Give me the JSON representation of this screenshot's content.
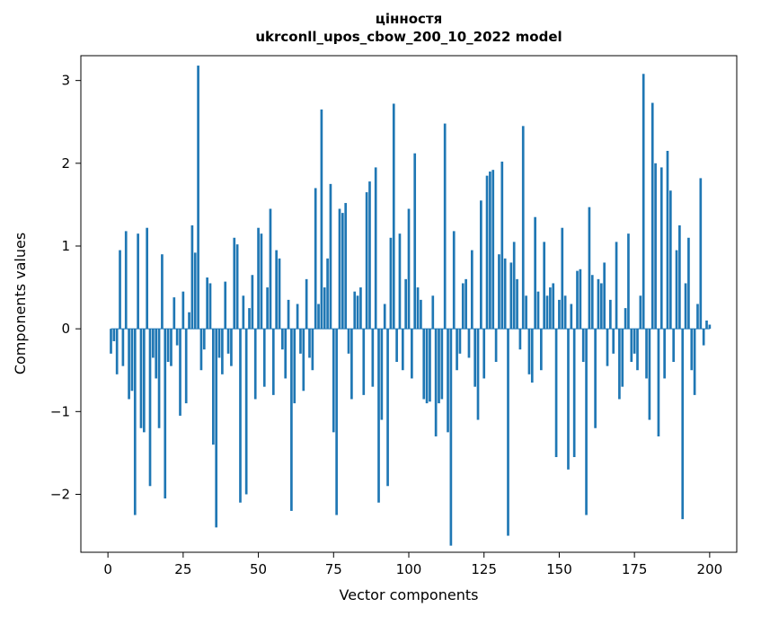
{
  "figure": {
    "title_line1": "цінностя",
    "title_line2": "ukrconll_upos_cbow_200_10_2022 model",
    "xlabel": "Vector components",
    "ylabel": "Components values"
  },
  "chart_data": {
    "type": "bar",
    "title": "цінностя",
    "subtitle": "ukrconll_upos_cbow_200_10_2022 model",
    "xlabel": "Vector components",
    "ylabel": "Components values",
    "bar_color": "#1f77b4",
    "grid": false,
    "legend": "none",
    "xlim": [
      -9,
      209
    ],
    "ylim": [
      -2.7,
      3.3
    ],
    "xticks": [
      0,
      25,
      50,
      75,
      100,
      125,
      150,
      175,
      200
    ],
    "yticks": [
      -2,
      -1,
      0,
      1,
      2,
      3
    ],
    "values": [
      -0.3,
      -0.15,
      -0.55,
      0.95,
      -0.45,
      1.18,
      -0.85,
      -0.75,
      -2.25,
      1.15,
      -1.2,
      -1.25,
      1.22,
      -1.9,
      -0.35,
      -0.6,
      -1.2,
      0.9,
      -2.05,
      -0.4,
      -0.45,
      0.38,
      -0.2,
      -1.05,
      0.45,
      -0.9,
      0.2,
      1.25,
      0.92,
      3.18,
      -0.5,
      -0.25,
      0.62,
      0.55,
      -1.4,
      -2.4,
      -0.35,
      -0.55,
      0.57,
      -0.3,
      -0.45,
      1.1,
      1.02,
      -2.1,
      0.4,
      -2.0,
      0.25,
      0.65,
      -0.85,
      1.22,
      1.15,
      -0.7,
      0.5,
      1.45,
      -0.8,
      0.95,
      0.85,
      -0.25,
      -0.6,
      0.35,
      -2.2,
      -0.9,
      0.3,
      -0.3,
      -0.75,
      0.6,
      -0.35,
      -0.5,
      1.7,
      0.3,
      2.65,
      0.5,
      0.85,
      1.75,
      -1.25,
      -2.25,
      1.45,
      1.4,
      1.52,
      -0.3,
      -0.85,
      0.45,
      0.4,
      0.5,
      -0.8,
      1.65,
      1.78,
      -0.7,
      1.95,
      -2.1,
      -1.1,
      0.3,
      -1.9,
      1.1,
      2.72,
      -0.4,
      1.15,
      -0.5,
      0.6,
      1.45,
      -0.6,
      2.12,
      0.5,
      0.35,
      -0.85,
      -0.9,
      -0.88,
      0.4,
      -1.3,
      -0.9,
      -0.85,
      2.48,
      -1.25,
      -2.62,
      1.18,
      -0.5,
      -0.3,
      0.55,
      0.6,
      -0.35,
      0.95,
      -0.7,
      -1.1,
      1.55,
      -0.6,
      1.85,
      1.9,
      1.92,
      -0.4,
      0.9,
      2.02,
      0.85,
      -2.5,
      0.8,
      1.05,
      0.6,
      -0.25,
      2.45,
      0.4,
      -0.55,
      -0.65,
      1.35,
      0.45,
      -0.5,
      1.05,
      0.4,
      0.5,
      0.55,
      -1.55,
      0.35,
      1.22,
      0.4,
      -1.7,
      0.3,
      -1.55,
      0.7,
      0.72,
      -0.4,
      -2.25,
      1.47,
      0.65,
      -1.2,
      0.6,
      0.55,
      0.8,
      -0.45,
      0.35,
      -0.3,
      1.05,
      -0.85,
      -0.7,
      0.25,
      1.15,
      -0.4,
      -0.3,
      -0.5,
      0.4,
      3.08,
      -0.6,
      -1.1,
      2.73,
      2.0,
      -1.3,
      1.95,
      -0.6,
      2.15,
      1.67,
      -0.4,
      0.95,
      1.25,
      -2.3,
      0.55,
      1.1,
      -0.5,
      -0.8,
      0.3,
      1.82,
      -0.2,
      0.1,
      0.05
    ]
  }
}
